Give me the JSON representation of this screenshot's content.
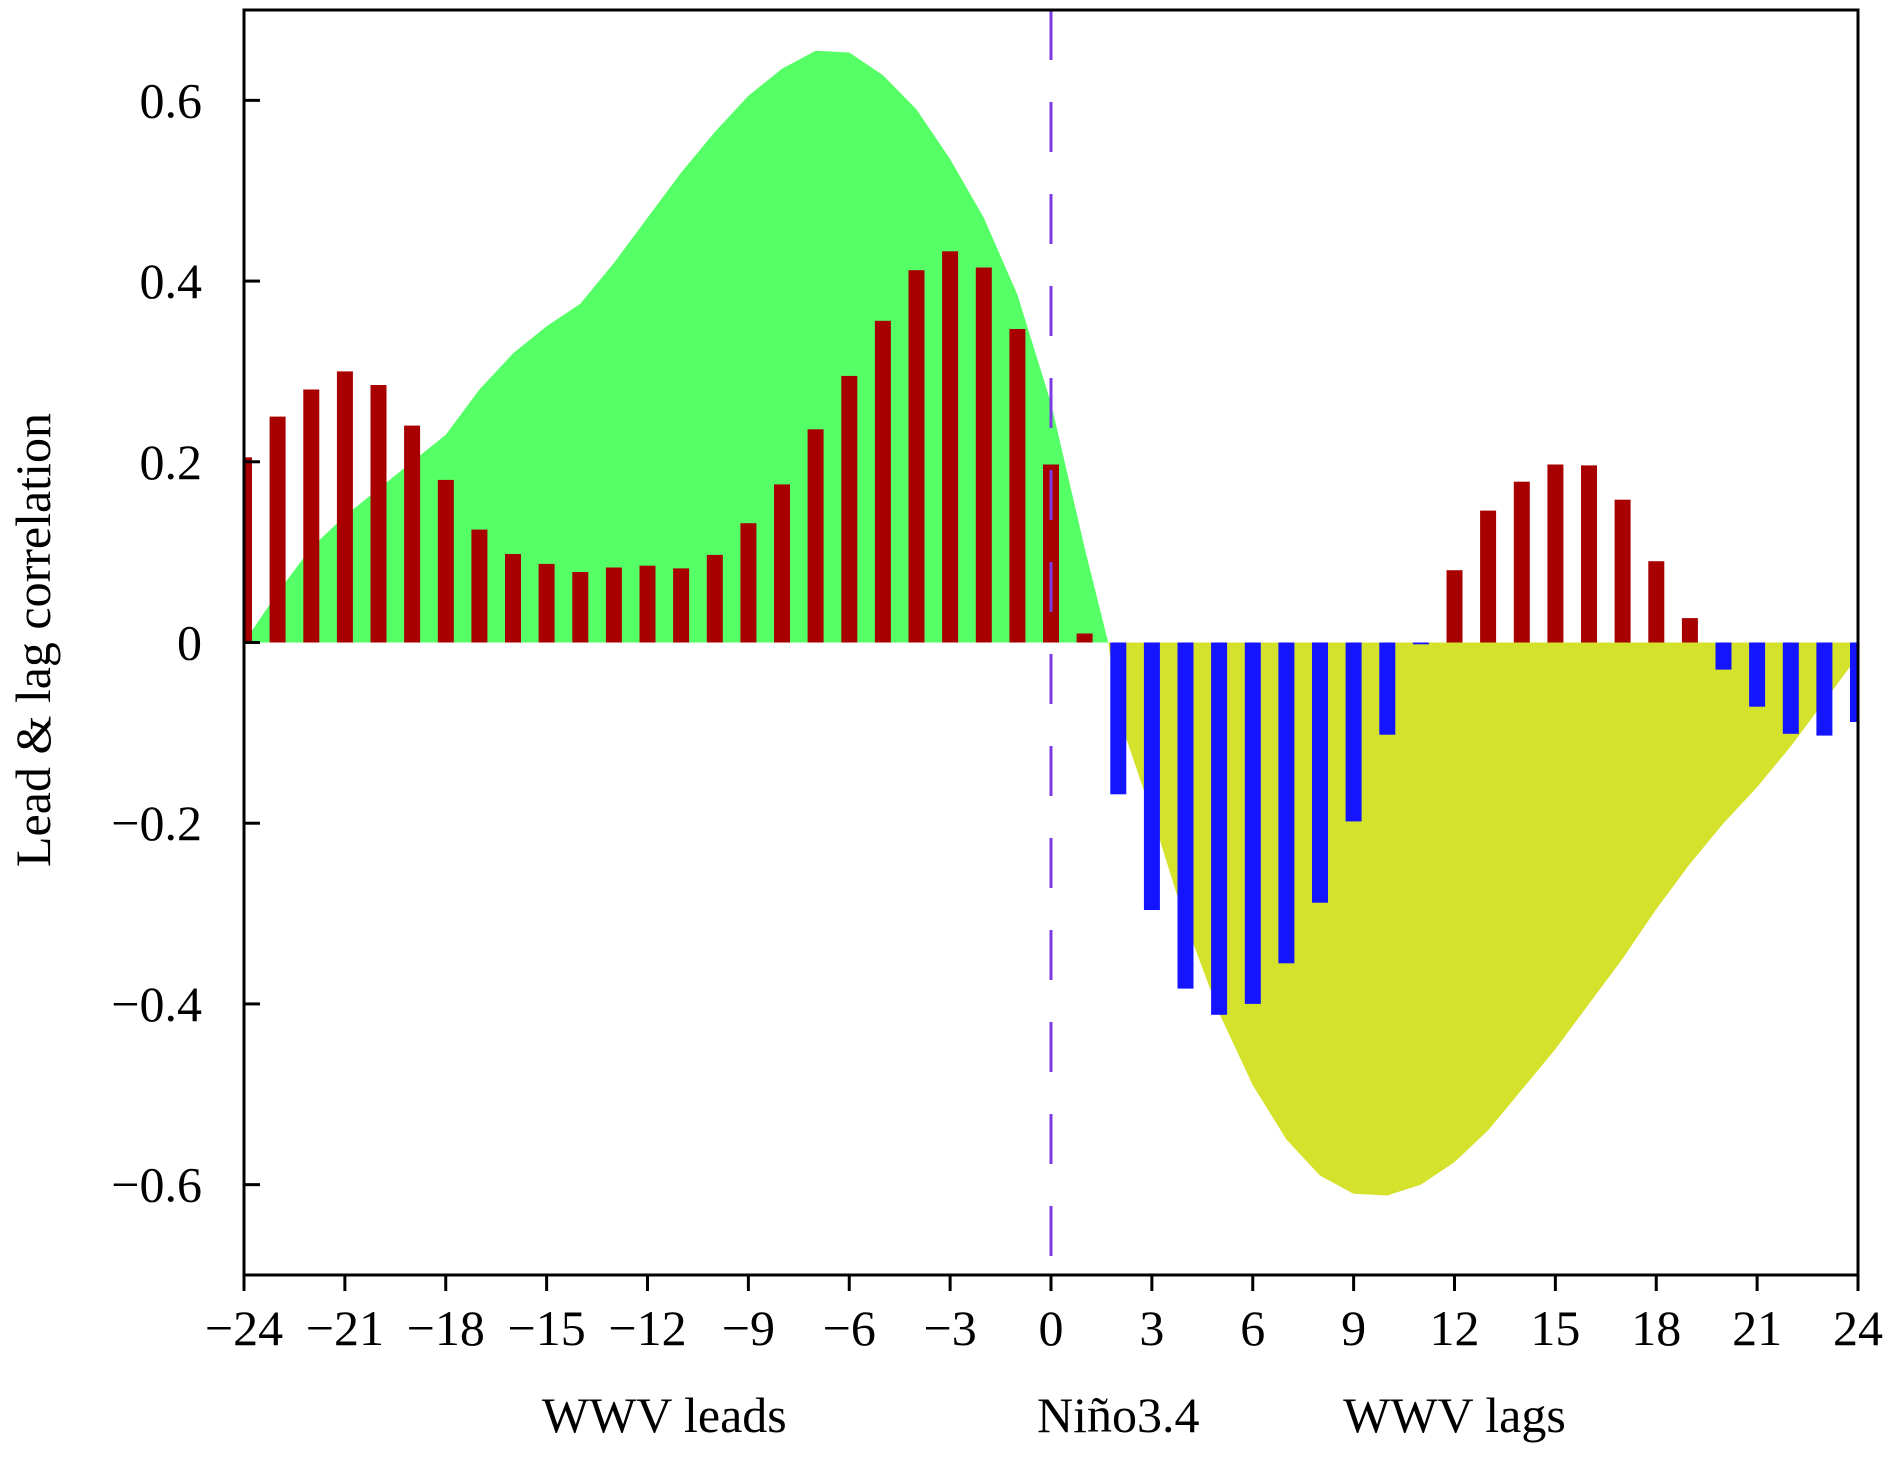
{
  "chart_data": {
    "type": "bar",
    "ylabel": "Lead & lag correlation",
    "xlim": [
      -24,
      24
    ],
    "ylim": [
      -0.7,
      0.7
    ],
    "x_ticks": [
      -24,
      -21,
      -18,
      -15,
      -12,
      -9,
      -6,
      -3,
      0,
      3,
      6,
      9,
      12,
      15,
      18,
      21,
      24
    ],
    "x_tick_labels": [
      "−24",
      "−21",
      "−18",
      "−15",
      "−12",
      "−9",
      "−6",
      "−3",
      "0",
      "3",
      "6",
      "9",
      "12",
      "15",
      "18",
      "21",
      "24"
    ],
    "y_ticks": [
      -0.6,
      -0.4,
      -0.2,
      0,
      0.2,
      0.4,
      0.6
    ],
    "y_tick_labels": [
      "−0.6",
      "−0.4",
      "−0.2",
      "0",
      "0.2",
      "0.4",
      "0.6"
    ],
    "group_labels": [
      "WWV leads",
      "Niño3.4",
      "WWV lags"
    ],
    "zero_line": {
      "x": 0,
      "style": "dashed",
      "color": "#7a3be0"
    },
    "bars": {
      "x": [
        -24,
        -23,
        -22,
        -21,
        -20,
        -19,
        -18,
        -17,
        -16,
        -15,
        -14,
        -13,
        -12,
        -11,
        -10,
        -9,
        -8,
        -7,
        -6,
        -5,
        -4,
        -3,
        -2,
        -1,
        0,
        1,
        2,
        3,
        4,
        5,
        6,
        7,
        8,
        9,
        10,
        11,
        12,
        13,
        14,
        15,
        16,
        17,
        18,
        19,
        20,
        21,
        22,
        23,
        24
      ],
      "values": [
        0.205,
        0.25,
        0.28,
        0.3,
        0.285,
        0.24,
        0.18,
        0.125,
        0.098,
        0.087,
        0.078,
        0.083,
        0.085,
        0.082,
        0.097,
        0.132,
        0.175,
        0.236,
        0.295,
        0.356,
        0.412,
        0.433,
        0.415,
        0.347,
        0.197,
        0.01,
        -0.168,
        -0.296,
        -0.383,
        -0.412,
        -0.4,
        -0.355,
        -0.288,
        -0.198,
        -0.102,
        -0.002,
        0.08,
        0.146,
        0.178,
        0.197,
        0.196,
        0.158,
        0.09,
        0.027,
        -0.03,
        -0.071,
        -0.101,
        -0.103,
        -0.088
      ],
      "positive_color": "#a80000",
      "negative_color": "#1414ff"
    },
    "areas": [
      {
        "color": "#55ff66",
        "x": [
          -24,
          -23,
          -22,
          -21,
          -20,
          -19,
          -18,
          -17,
          -16,
          -15,
          -14,
          -13,
          -12,
          -11,
          -10,
          -9,
          -8,
          -7,
          -6,
          -5,
          -4,
          -3,
          -2,
          -1,
          0,
          1,
          1.7
        ],
        "values": [
          0.0,
          0.055,
          0.105,
          0.14,
          0.17,
          0.2,
          0.23,
          0.28,
          0.32,
          0.35,
          0.375,
          0.42,
          0.47,
          0.52,
          0.565,
          0.605,
          0.635,
          0.655,
          0.653,
          0.628,
          0.59,
          0.535,
          0.47,
          0.385,
          0.265,
          0.105,
          0.0
        ]
      },
      {
        "color": "#d4e22c",
        "x": [
          1.7,
          2,
          3,
          4,
          5,
          6,
          7,
          8,
          9,
          10,
          11,
          12,
          13,
          14,
          15,
          16,
          17,
          18,
          19,
          20,
          21,
          22,
          23,
          24
        ],
        "values": [
          0.0,
          -0.08,
          -0.19,
          -0.31,
          -0.41,
          -0.49,
          -0.55,
          -0.59,
          -0.61,
          -0.612,
          -0.6,
          -0.575,
          -0.54,
          -0.495,
          -0.45,
          -0.4,
          -0.35,
          -0.295,
          -0.245,
          -0.2,
          -0.16,
          -0.115,
          -0.065,
          -0.015
        ]
      }
    ]
  }
}
